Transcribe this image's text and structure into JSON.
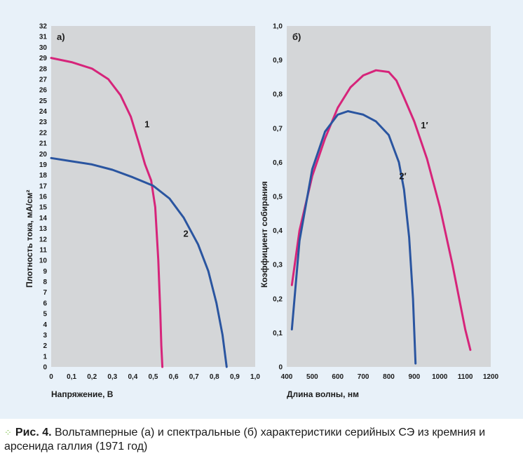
{
  "colors": {
    "panel_background": "#e8f1f9",
    "plot_background": "#d4d6d8",
    "magenta_series": "#d6247a",
    "blue_series": "#2a55a0",
    "caption_dots": "#7bc043"
  },
  "caption": {
    "marker": "⁘",
    "figure_label": "Рис. 4.",
    "text": "Вольтамперные (а) и спектральные (б) характеристики серийных СЭ из кремния и арсенида галлия (1971 год)"
  },
  "chart_data": [
    {
      "type": "line",
      "panel_label": "а)",
      "xlabel": "Напряжение, В",
      "ylabel": "Плотность тока, мА/см²",
      "xlim": [
        0,
        1.0
      ],
      "ylim": [
        0,
        32
      ],
      "x_ticks": [
        "0",
        "0,1",
        "0,2",
        "0,3",
        "0,4",
        "0,5",
        "0,6",
        "0,7",
        "0,8",
        "0,9",
        "1,0"
      ],
      "y_ticks": [
        "0",
        "1",
        "2",
        "3",
        "4",
        "5",
        "6",
        "7",
        "8",
        "9",
        "10",
        "11",
        "12",
        "13",
        "14",
        "15",
        "16",
        "17",
        "18",
        "19",
        "20",
        "21",
        "22",
        "23",
        "24",
        "25",
        "26",
        "27",
        "28",
        "29",
        "30",
        "31",
        "32"
      ],
      "grid": false,
      "series": [
        {
          "name": "1",
          "color_key": "magenta_series",
          "label_at": [
            0.47,
            22.5
          ],
          "points": [
            [
              0,
              29
            ],
            [
              0.1,
              28.6
            ],
            [
              0.2,
              28
            ],
            [
              0.28,
              27
            ],
            [
              0.34,
              25.5
            ],
            [
              0.39,
              23.5
            ],
            [
              0.43,
              21
            ],
            [
              0.46,
              19
            ],
            [
              0.49,
              17.5
            ],
            [
              0.51,
              15
            ],
            [
              0.525,
              10
            ],
            [
              0.535,
              5
            ],
            [
              0.54,
              2
            ],
            [
              0.545,
              0
            ]
          ]
        },
        {
          "name": "2",
          "color_key": "blue_series",
          "label_at": [
            0.66,
            12.2
          ],
          "points": [
            [
              0,
              19.6
            ],
            [
              0.1,
              19.3
            ],
            [
              0.2,
              19
            ],
            [
              0.3,
              18.5
            ],
            [
              0.4,
              17.8
            ],
            [
              0.5,
              17
            ],
            [
              0.58,
              15.8
            ],
            [
              0.65,
              14
            ],
            [
              0.72,
              11.5
            ],
            [
              0.77,
              9
            ],
            [
              0.81,
              6
            ],
            [
              0.84,
              3
            ],
            [
              0.86,
              0
            ]
          ]
        }
      ]
    },
    {
      "type": "line",
      "panel_label": "б)",
      "xlabel": "Длина волны, нм",
      "ylabel": "Коэффициент собирания",
      "xlim": [
        400,
        1200
      ],
      "ylim": [
        0,
        1.0
      ],
      "x_ticks": [
        "400",
        "500",
        "600",
        "700",
        "800",
        "900",
        "1000",
        "1100",
        "1200"
      ],
      "y_ticks": [
        "0",
        "0,1",
        "0,2",
        "0,3",
        "0,4",
        "0,5",
        "0,6",
        "0,7",
        "0,8",
        "0,9",
        "1,0"
      ],
      "grid": false,
      "series": [
        {
          "name": "1′",
          "color_key": "magenta_series",
          "label_at": [
            940,
            0.7
          ],
          "points": [
            [
              420,
              0.24
            ],
            [
              450,
              0.4
            ],
            [
              500,
              0.56
            ],
            [
              550,
              0.67
            ],
            [
              600,
              0.76
            ],
            [
              650,
              0.82
            ],
            [
              700,
              0.855
            ],
            [
              750,
              0.87
            ],
            [
              800,
              0.865
            ],
            [
              830,
              0.84
            ],
            [
              860,
              0.79
            ],
            [
              900,
              0.72
            ],
            [
              950,
              0.61
            ],
            [
              1000,
              0.47
            ],
            [
              1050,
              0.3
            ],
            [
              1100,
              0.11
            ],
            [
              1120,
              0.05
            ]
          ]
        },
        {
          "name": "2′",
          "color_key": "blue_series",
          "label_at": [
            855,
            0.55
          ],
          "points": [
            [
              420,
              0.11
            ],
            [
              450,
              0.37
            ],
            [
              500,
              0.58
            ],
            [
              550,
              0.69
            ],
            [
              600,
              0.74
            ],
            [
              640,
              0.75
            ],
            [
              700,
              0.74
            ],
            [
              750,
              0.72
            ],
            [
              800,
              0.68
            ],
            [
              840,
              0.6
            ],
            [
              860,
              0.52
            ],
            [
              880,
              0.38
            ],
            [
              895,
              0.2
            ],
            [
              905,
              0.01
            ]
          ]
        }
      ]
    }
  ]
}
